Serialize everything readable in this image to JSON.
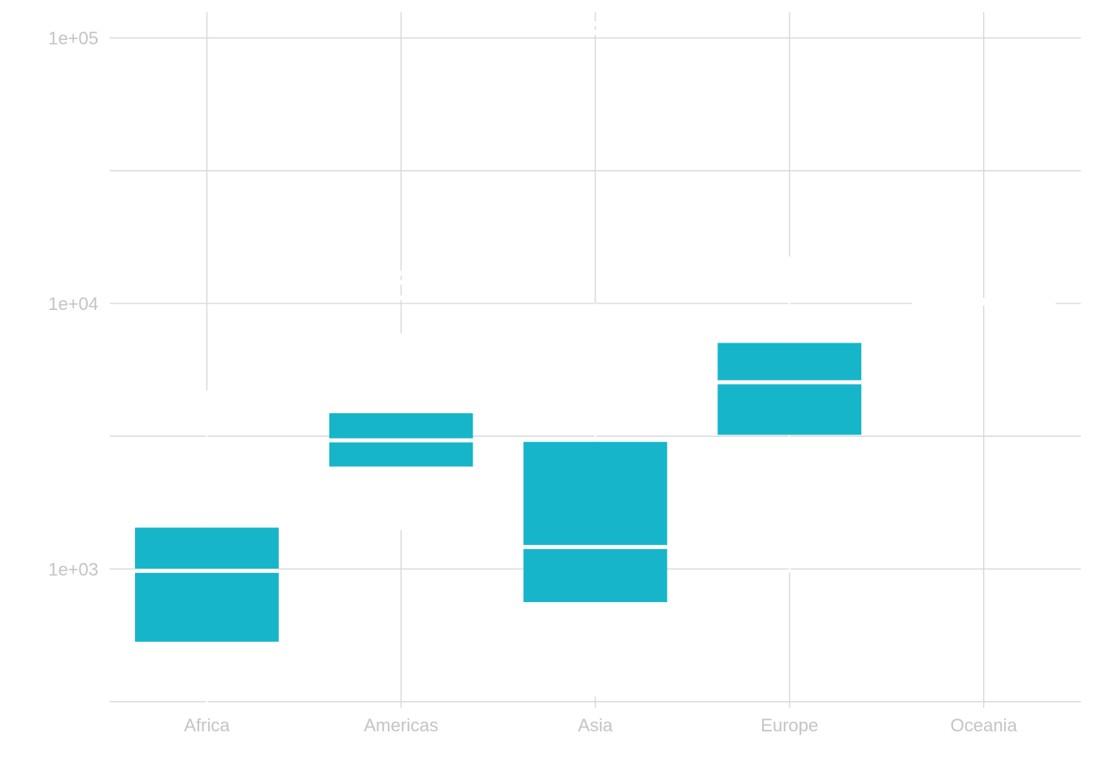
{
  "chart_data": {
    "type": "box",
    "categories": [
      "Africa",
      "Americas",
      "Asia",
      "Europe",
      "Oceania"
    ],
    "y_scale": "log10",
    "ylim": [
      300,
      125000
    ],
    "y_ticks": [
      1000,
      10000,
      100000
    ],
    "y_tick_labels": [
      "1e+03",
      "1e+04",
      "1e+05"
    ],
    "y_minor_gridlines": [
      316.2,
      3162,
      31623
    ],
    "grid": true,
    "box_color": "#17b5c9",
    "boxes": [
      {
        "category": "Africa",
        "lower_whisker": 241,
        "q1": 532,
        "median": 984,
        "q3": 1431,
        "upper_whisker": 4700
      },
      {
        "category": "Americas",
        "lower_whisker": 1400,
        "q1": 2430,
        "median": 3050,
        "q3": 3860,
        "upper_whisker": 7700
      },
      {
        "category": "Asia",
        "lower_whisker": 331,
        "q1": 750,
        "median": 1210,
        "q3": 3010,
        "upper_whisker": 10000
      },
      {
        "category": "Europe",
        "lower_whisker": 970,
        "q1": 3200,
        "median": 5050,
        "q3": 7100,
        "upper_whisker": 15000
      },
      {
        "category": "Oceania",
        "lower_whisker": 10000,
        "q1": 10000,
        "median": 10000,
        "q3": 10000,
        "upper_whisker": 10500
      }
    ],
    "outliers": [
      {
        "category": "Americas",
        "values": [
          10500,
          12000,
          13000
        ]
      },
      {
        "category": "Asia",
        "values": [
          105000,
          113000
        ]
      }
    ]
  }
}
